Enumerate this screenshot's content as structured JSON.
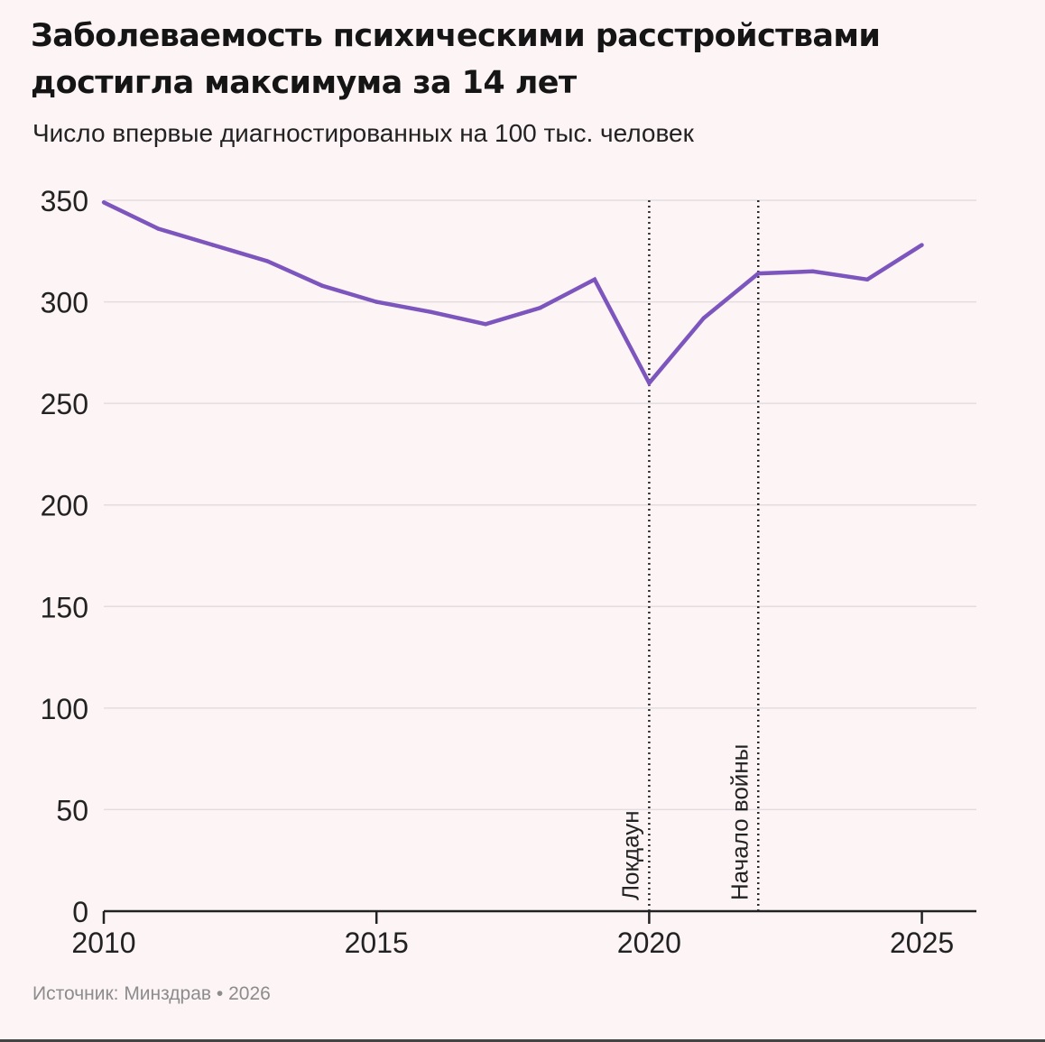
{
  "header": {
    "title": "Заболеваемость психическими расстройствами достигла максимума за 14 лет",
    "subtitle": "Число впервые диагностированных на 100 тыс. человек"
  },
  "footer": {
    "source": "Источник: Минздрав • 2026"
  },
  "colors": {
    "background": "#fdf4f6",
    "line": "#7c55bd",
    "grid": "#e3dde0",
    "axis": "#222222",
    "marker": "#2a2a2a"
  },
  "chart_data": {
    "type": "line",
    "title": "Заболеваемость психическими расстройствами достигла максимума за 14 лет",
    "subtitle": "Число впервые диагностированных на 100 тыс. человек",
    "x": [
      2010,
      2011,
      2012,
      2013,
      2014,
      2015,
      2016,
      2017,
      2018,
      2019,
      2020,
      2021,
      2022,
      2023,
      2024,
      2025
    ],
    "series": [
      {
        "values": [
          349,
          336,
          328,
          320,
          308,
          300,
          295,
          289,
          297,
          311,
          260,
          292,
          314,
          315,
          311,
          328
        ]
      }
    ],
    "xlim": [
      2010,
      2026
    ],
    "ylim": [
      0,
      350
    ],
    "x_ticks": [
      2010,
      2015,
      2020,
      2025
    ],
    "y_ticks": [
      0,
      50,
      100,
      150,
      200,
      250,
      300,
      350
    ],
    "grid": "horizontal",
    "annotations": [
      {
        "x": 2020,
        "label": "Локдаун",
        "style": "dotted-vertical-line"
      },
      {
        "x": 2022,
        "label": "Начало войны",
        "style": "dotted-vertical-line"
      }
    ]
  }
}
